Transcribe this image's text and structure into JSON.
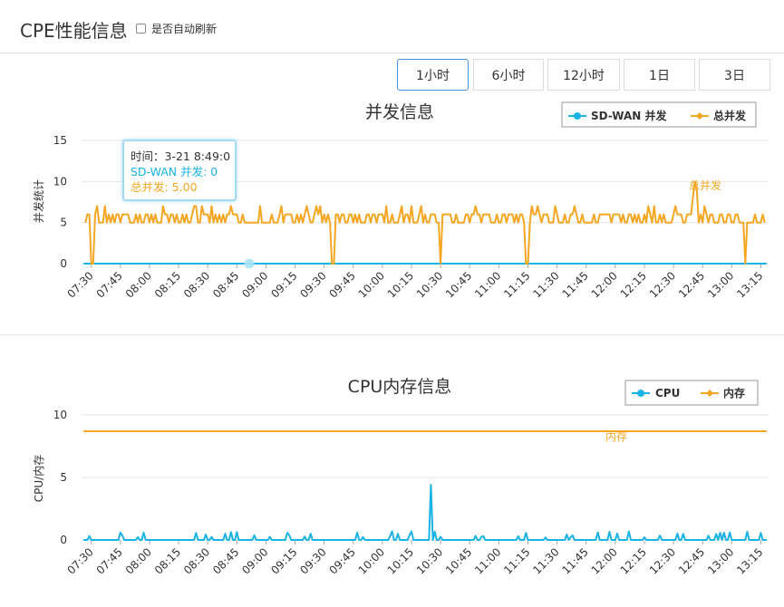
{
  "page": {
    "title": "CPE性能信息",
    "auto_refresh_label": "是否自动刷新",
    "auto_refresh_checked": false
  },
  "time_ranges": {
    "options": [
      "1小时",
      "6小时",
      "12小时",
      "1日",
      "3日"
    ],
    "selected": "1小时"
  },
  "colors": {
    "sdwan": "#1ab3e6",
    "total": "#f5a623",
    "cpu": "#1ab3e6",
    "memory": "#f5a623",
    "grid": "#e6e6e6",
    "axis": "#aaaaaa"
  },
  "tooltip": {
    "time": "时间：3-21 8:49:0",
    "sdwan": "SD-WAN 并发: 0",
    "total": "总并发: 5.00"
  },
  "chart_data": [
    {
      "type": "line",
      "title": "并发信息",
      "xlabel": "",
      "ylabel": "并发统计",
      "ylim": [
        0,
        15
      ],
      "yticks": [
        "0",
        "5",
        "10",
        "15"
      ],
      "categories": [
        "07:30",
        "07:45",
        "08:00",
        "08:15",
        "08:30",
        "08:45",
        "09:00",
        "09:15",
        "09:30",
        "09:45",
        "10:00",
        "10:15",
        "10:30",
        "10:45",
        "11:00",
        "11:15",
        "11:30",
        "11:45",
        "12:00",
        "12:15",
        "12:30",
        "12:45",
        "13:00",
        "13:15"
      ],
      "x_range": [
        "07:25",
        "13:19"
      ],
      "grid": true,
      "legend": "top-right",
      "series": [
        {
          "name": "SD-WAN 并发",
          "baseline": 0
        },
        {
          "name": "总并发",
          "baseline": 5,
          "peak_value": 10,
          "peak_time": "12:41",
          "end_label": "总并发"
        }
      ]
    },
    {
      "type": "line",
      "title": "CPU内存信息",
      "xlabel": "",
      "ylabel": "CPU/内存",
      "ylim": [
        0,
        10
      ],
      "yticks": [
        "0",
        "5",
        "10"
      ],
      "categories": [
        "07:30",
        "07:45",
        "08:00",
        "08:15",
        "08:30",
        "08:45",
        "09:00",
        "09:15",
        "09:30",
        "09:45",
        "10:00",
        "10:15",
        "10:30",
        "10:45",
        "11:00",
        "11:15",
        "11:30",
        "11:45",
        "12:00",
        "12:15",
        "12:30",
        "12:45",
        "13:00",
        "13:15"
      ],
      "x_range": [
        "07:25",
        "13:19"
      ],
      "grid": true,
      "legend": "top-right",
      "series": [
        {
          "name": "CPU",
          "baseline": 0,
          "peak_value": 4.4,
          "peak_time": "10:25"
        },
        {
          "name": "内存",
          "baseline": 8.7,
          "end_label": "内存"
        }
      ]
    }
  ]
}
